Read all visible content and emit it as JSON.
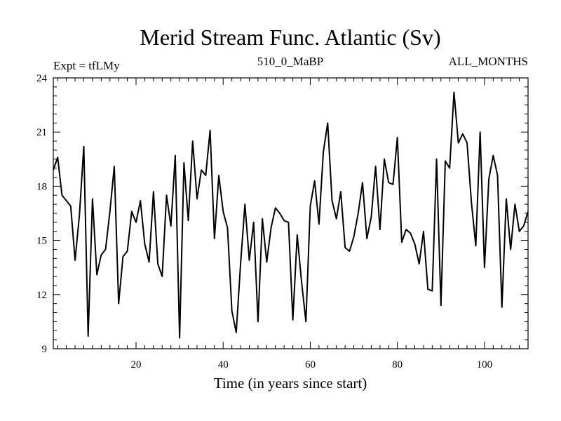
{
  "chart_data": {
    "type": "line",
    "title": "Merid Stream Func. Atlantic (Sv)",
    "subtitle_left": "Expt = tfLMy",
    "subtitle_center": "510_0_MaBP",
    "subtitle_right": "ALL_MONTHS",
    "xlabel": "Time (in years since start)",
    "ylabel": "",
    "xlim": [
      1,
      110
    ],
    "ylim": [
      9,
      24
    ],
    "xticks": [
      20,
      40,
      60,
      80,
      100
    ],
    "yticks": [
      9,
      12,
      15,
      18,
      21,
      24
    ],
    "x_start": 1,
    "x_step": 1,
    "values": [
      18.9,
      19.6,
      17.5,
      17.2,
      16.9,
      13.9,
      16.4,
      20.2,
      9.7,
      17.3,
      13.1,
      14.2,
      14.5,
      16.6,
      19.1,
      11.5,
      14.1,
      14.4,
      16.6,
      16.0,
      17.2,
      14.8,
      13.8,
      17.7,
      13.7,
      13.0,
      17.5,
      15.8,
      19.7,
      9.6,
      19.3,
      16.1,
      20.5,
      17.3,
      18.9,
      18.6,
      21.1,
      15.1,
      18.6,
      16.6,
      15.7,
      11.1,
      9.9,
      13.7,
      17.0,
      13.9,
      16.0,
      10.5,
      16.2,
      13.8,
      15.7,
      16.8,
      16.5,
      16.1,
      16.0,
      10.6,
      15.3,
      12.7,
      10.5,
      16.9,
      18.3,
      15.9,
      19.9,
      21.5,
      17.2,
      16.2,
      17.7,
      14.6,
      14.4,
      15.2,
      16.5,
      18.2,
      15.1,
      16.3,
      19.1,
      15.6,
      19.5,
      18.2,
      18.1,
      20.7,
      14.9,
      15.6,
      15.4,
      14.8,
      13.7,
      15.5,
      12.3,
      12.2,
      19.5,
      11.4,
      19.4,
      19.0,
      23.2,
      20.4,
      20.9,
      20.4,
      17.1,
      14.7,
      21.0,
      13.5,
      18.4,
      19.7,
      18.6,
      11.3,
      17.3,
      14.5,
      17.0,
      15.5,
      15.8,
      16.6
    ],
    "line_color": "#000000"
  }
}
